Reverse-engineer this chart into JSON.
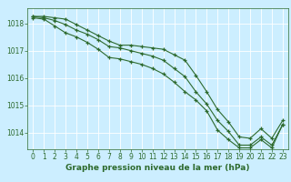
{
  "x": [
    0,
    1,
    2,
    3,
    4,
    5,
    6,
    7,
    8,
    9,
    10,
    11,
    12,
    13,
    14,
    15,
    16,
    17,
    18,
    19,
    20,
    21,
    22,
    23
  ],
  "series1": [
    1018.25,
    1018.25,
    1018.2,
    1018.15,
    1017.95,
    1017.75,
    1017.55,
    1017.35,
    1017.2,
    1017.2,
    1017.15,
    1017.1,
    1017.05,
    1016.85,
    1016.65,
    1016.1,
    1015.5,
    1014.85,
    1014.4,
    1013.85,
    1013.8,
    1014.15,
    1013.8,
    1014.45
  ],
  "series2": [
    1018.25,
    1018.2,
    1018.1,
    1017.95,
    1017.75,
    1017.6,
    1017.4,
    1017.15,
    1017.1,
    1017.0,
    1016.9,
    1016.8,
    1016.65,
    1016.35,
    1016.05,
    1015.5,
    1015.05,
    1014.45,
    1014.05,
    1013.55,
    1013.55,
    1013.85,
    1013.55,
    1014.3
  ],
  "series3": [
    1018.2,
    1018.15,
    1017.9,
    1017.65,
    1017.5,
    1017.3,
    1017.05,
    1016.75,
    1016.7,
    1016.6,
    1016.5,
    1016.35,
    1016.15,
    1015.85,
    1015.5,
    1015.2,
    1014.8,
    1014.1,
    1013.75,
    1013.45,
    1013.45,
    1013.75,
    1013.45,
    1014.3
  ],
  "ylim_min": 1013.4,
  "ylim_max": 1018.55,
  "yticks": [
    1014,
    1015,
    1016,
    1017,
    1018
  ],
  "xticks": [
    0,
    1,
    2,
    3,
    4,
    5,
    6,
    7,
    8,
    9,
    10,
    11,
    12,
    13,
    14,
    15,
    16,
    17,
    18,
    19,
    20,
    21,
    22,
    23
  ],
  "xlabel": "Graphe pression niveau de la mer (hPa)",
  "line_color": "#2d6a2d",
  "bg_color": "#cceeff",
  "grid_color": "#ffffff",
  "marker": "+",
  "marker_size": 3.5,
  "marker_edge_width": 0.9,
  "line_width": 0.8,
  "tick_fontsize": 5.5,
  "xlabel_fontsize": 6.5
}
